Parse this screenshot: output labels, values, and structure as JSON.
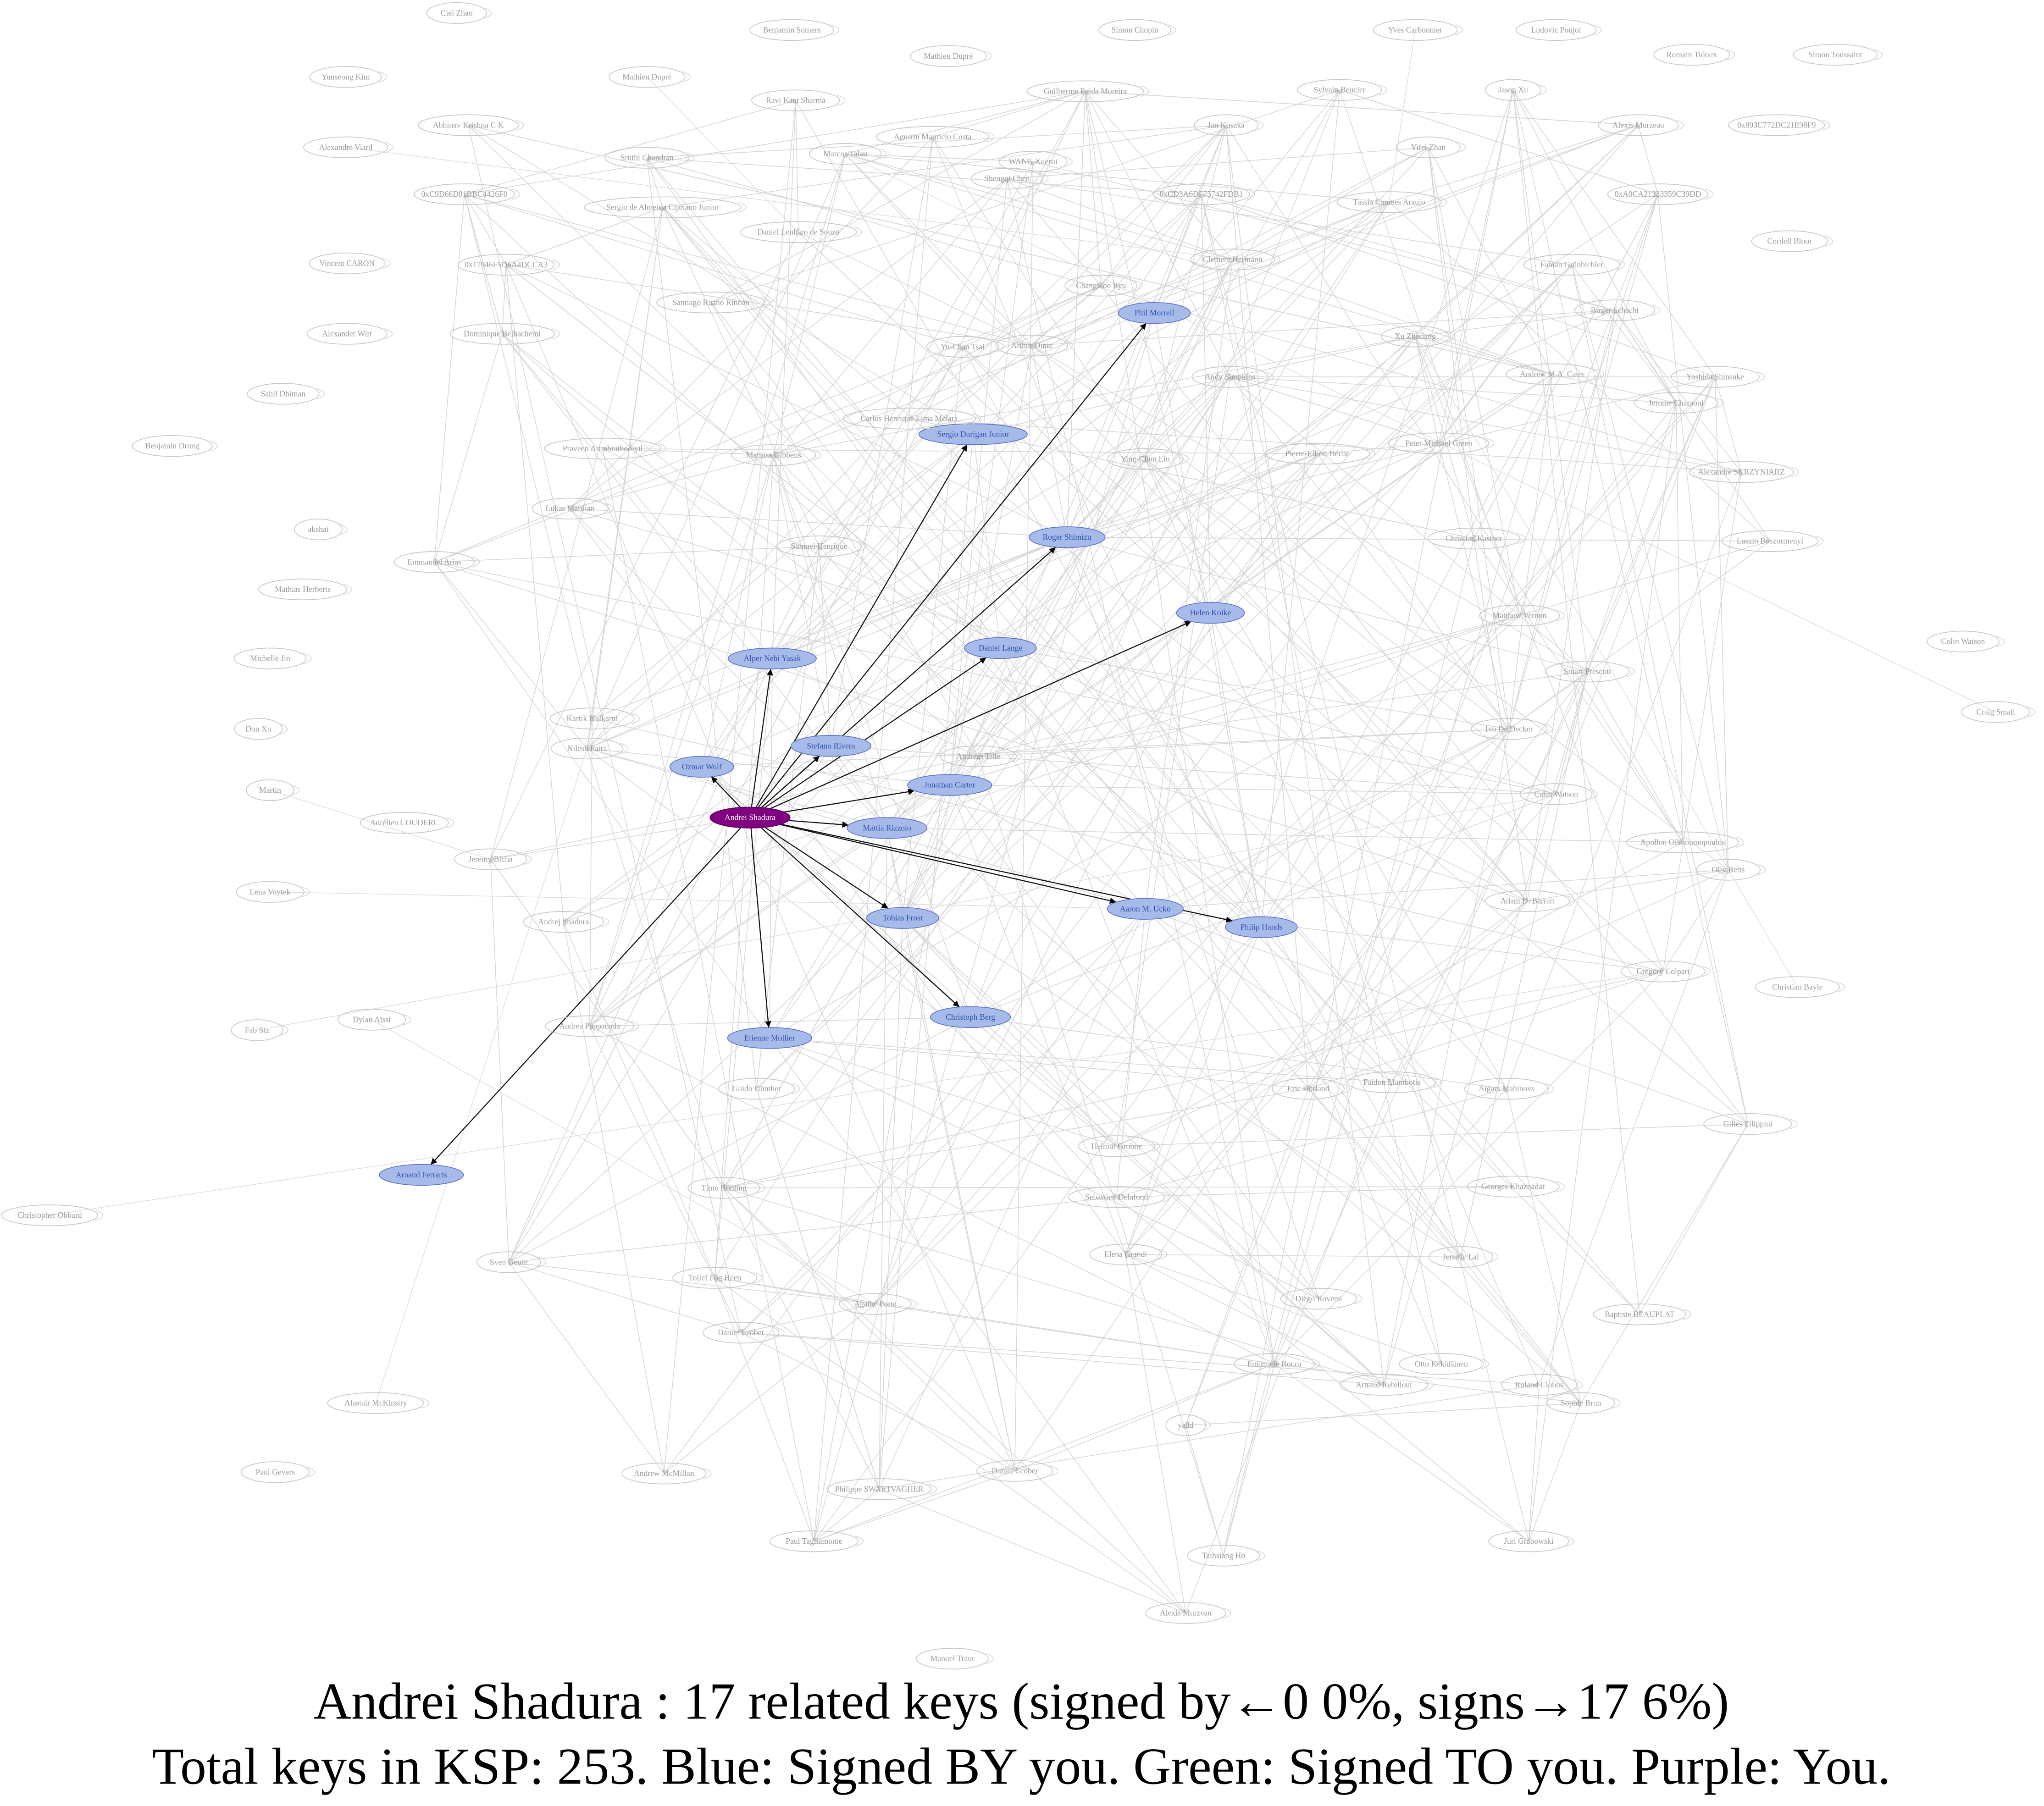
{
  "graph": {
    "caption": [
      "Andrei Shadura : 17 related keys (signed by←0  0%, signs→17  6%)",
      "Total keys in KSP: 253. Blue: Signed BY you. Green: Signed TO you. Purple: You."
    ],
    "colors": {
      "you": "#800080",
      "signed-by-you": "#a7bbea",
      "other": "#ffffff"
    },
    "nodes": [
      {
        "label": "Andrei Shadura",
        "role": "you"
      },
      {
        "label": "Phil Morrell",
        "role": "signed-by-you"
      },
      {
        "label": "Sergio Durigan Junior",
        "role": "signed-by-you"
      },
      {
        "label": "Roger Shimizu",
        "role": "signed-by-you"
      },
      {
        "label": "Helen Koike",
        "role": "signed-by-you"
      },
      {
        "label": "Daniel Lange",
        "role": "signed-by-you"
      },
      {
        "label": "Alper Nebi Yasak",
        "role": "signed-by-you"
      },
      {
        "label": "Stefano Rivera",
        "role": "signed-by-you"
      },
      {
        "label": "Ozmar Wolf",
        "role": "signed-by-you"
      },
      {
        "label": "Jonathan Carter",
        "role": "signed-by-you"
      },
      {
        "label": "Mattia Rizzolo",
        "role": "signed-by-you"
      },
      {
        "label": "Tobias Frost",
        "role": "signed-by-you"
      },
      {
        "label": "Aaron M. Ucko",
        "role": "signed-by-you"
      },
      {
        "label": "Philip Hands",
        "role": "signed-by-you"
      },
      {
        "label": "Christoph Berg",
        "role": "signed-by-you"
      },
      {
        "label": "Etienne Mollier",
        "role": "signed-by-you"
      },
      {
        "label": "Arnaud Ferraris",
        "role": "signed-by-you"
      },
      {
        "label": "Ciel Zhao",
        "role": "other"
      },
      {
        "label": "Benjamin Somers",
        "role": "other"
      },
      {
        "label": "Simon Chopin",
        "role": "other"
      },
      {
        "label": "Yves Carbonnier",
        "role": "other"
      },
      {
        "label": "Ludovic Poujol",
        "role": "other"
      },
      {
        "label": "Mathieu Dupré",
        "role": "other"
      },
      {
        "label": "Romain Tidoux",
        "role": "other"
      },
      {
        "label": "Simon Toussaint",
        "role": "other"
      },
      {
        "label": "Yunseong Kim",
        "role": "other"
      },
      {
        "label": "Mathieu Dupré",
        "role": "other"
      },
      {
        "label": "Guilherme Puida Moreira",
        "role": "other"
      },
      {
        "label": "Sylvain Beucler",
        "role": "other"
      },
      {
        "label": "Jason Xu",
        "role": "other"
      },
      {
        "label": "Ravi Kant Sharma",
        "role": "other"
      },
      {
        "label": "Abhinav Krishna C K",
        "role": "other"
      },
      {
        "label": "Jan Koszka",
        "role": "other"
      },
      {
        "label": "Alexis Murzeau",
        "role": "other"
      },
      {
        "label": "0x893C772DC21E98F9",
        "role": "other"
      },
      {
        "label": "Agustin Mauricio Costa",
        "role": "other"
      },
      {
        "label": "Alexandre Viard",
        "role": "other"
      },
      {
        "label": "Yifei Zhan",
        "role": "other"
      },
      {
        "label": "Marcos Talau",
        "role": "other"
      },
      {
        "label": "Sruthi Chandran",
        "role": "other"
      },
      {
        "label": "WANG Xuerui",
        "role": "other"
      },
      {
        "label": "Shengqi Chen",
        "role": "other"
      },
      {
        "label": "0xC9D66D81BBC4426F0",
        "role": "other"
      },
      {
        "label": "0xCD3A6DF75742FDB1",
        "role": "other"
      },
      {
        "label": "0xA0CA21233359C39DD",
        "role": "other"
      },
      {
        "label": "Sergio de Almeida Cipriano Junior",
        "role": "other"
      },
      {
        "label": "Tassia Camoes Araujo",
        "role": "other"
      },
      {
        "label": "Daniel Lenharo de Souza",
        "role": "other"
      },
      {
        "label": "Cordell Bloor",
        "role": "other"
      },
      {
        "label": "Vincent CARON",
        "role": "other"
      },
      {
        "label": "0x17946F5D6A4DCCA3",
        "role": "other"
      },
      {
        "label": "Clement Hermann",
        "role": "other"
      },
      {
        "label": "Fabian Grünbichler",
        "role": "other"
      },
      {
        "label": "Changwoo Ryu",
        "role": "other"
      },
      {
        "label": "Santiago Ruano Rincón",
        "role": "other"
      },
      {
        "label": "Birger Schacht",
        "role": "other"
      },
      {
        "label": "Alexander Wirt",
        "role": "other"
      },
      {
        "label": "Dominique Belhachemi",
        "role": "other"
      },
      {
        "label": "Xu Zhixiang",
        "role": "other"
      },
      {
        "label": "Yu-Chan Tsai",
        "role": "other"
      },
      {
        "label": "Arthur Diniz",
        "role": "other"
      },
      {
        "label": "Andy Simpkins",
        "role": "other"
      },
      {
        "label": "Andrew M.A. Cater",
        "role": "other"
      },
      {
        "label": "Yoshida Shinsuke",
        "role": "other"
      },
      {
        "label": "Sahil Dhiman",
        "role": "other"
      },
      {
        "label": "Jerome Charaoui",
        "role": "other"
      },
      {
        "label": "Benjamin Drung",
        "role": "other"
      },
      {
        "label": "Praveen Arimbrathodiyil",
        "role": "other"
      },
      {
        "label": "Carlos Henrique Lima Melara",
        "role": "other"
      },
      {
        "label": "Pierre-Elliott Bécue",
        "role": "other"
      },
      {
        "label": "Peter Michael Green",
        "role": "other"
      },
      {
        "label": "Mathias Gibbens",
        "role": "other"
      },
      {
        "label": "Ying-Chun Liu",
        "role": "other"
      },
      {
        "label": "Alexandre SKRZYNIARZ",
        "role": "other"
      },
      {
        "label": "Lukas Märdian",
        "role": "other"
      },
      {
        "label": "Nilesh Patra",
        "role": "other"
      },
      {
        "label": "akshat",
        "role": "other"
      },
      {
        "label": "Christian Kastner",
        "role": "other"
      },
      {
        "label": "Laszlo Boszormenyi",
        "role": "other"
      },
      {
        "label": "Emmanuel Arias",
        "role": "other"
      },
      {
        "label": "Samuel Henrique",
        "role": "other"
      },
      {
        "label": "Mathias Herberts",
        "role": "other"
      },
      {
        "label": "Matthew Vernon",
        "role": "other"
      },
      {
        "label": "Colin Watson",
        "role": "other"
      },
      {
        "label": "Michelle Jin",
        "role": "other"
      },
      {
        "label": "Dylan Aïssi",
        "role": "other"
      },
      {
        "label": "Stuart Prescott",
        "role": "other"
      },
      {
        "label": "Don Xu",
        "role": "other"
      },
      {
        "label": "Craig Small",
        "role": "other"
      },
      {
        "label": "Martin",
        "role": "other"
      },
      {
        "label": "Ivo De Decker",
        "role": "other"
      },
      {
        "label": "Kartik Kulkarni",
        "role": "other"
      },
      {
        "label": "Colin Watson",
        "role": "other"
      },
      {
        "label": "Aurélien COUDERC",
        "role": "other"
      },
      {
        "label": "Apollon Oikonomopoulos",
        "role": "other"
      },
      {
        "label": "Jeremy Bícha",
        "role": "other"
      },
      {
        "label": "Olly Betts",
        "role": "other"
      },
      {
        "label": "Lena Voytek",
        "role": "other"
      },
      {
        "label": "Andrej Shadura",
        "role": "other"
      },
      {
        "label": "Adam D. Barratt",
        "role": "other"
      },
      {
        "label": "Gregory Colpart",
        "role": "other"
      },
      {
        "label": "Christian Bayle",
        "role": "other"
      },
      {
        "label": "Fab Stz",
        "role": "other"
      },
      {
        "label": "Andrea Pappacoda",
        "role": "other"
      },
      {
        "label": "Christopher Obbard",
        "role": "other"
      },
      {
        "label": "Guido Günther",
        "role": "other"
      },
      {
        "label": "Gilles Filippini",
        "role": "other"
      },
      {
        "label": "Timo Röhling",
        "role": "other"
      },
      {
        "label": "Sven Geuer",
        "role": "other"
      },
      {
        "label": "Tollef Fog Heen",
        "role": "other"
      },
      {
        "label": "Elena Grandi",
        "role": "other"
      },
      {
        "label": "Jeremy Lal",
        "role": "other"
      },
      {
        "label": "Daniel Gröber",
        "role": "other"
      },
      {
        "label": "Agathe Porte",
        "role": "other"
      },
      {
        "label": "Baptiste BEAUPLAT",
        "role": "other"
      },
      {
        "label": "Diego Roversi",
        "role": "other"
      },
      {
        "label": "Emanuele Rocca",
        "role": "other"
      },
      {
        "label": "Otto Kekäläinen",
        "role": "other"
      },
      {
        "label": "Alastair McKinstry",
        "role": "other"
      },
      {
        "label": "Andrew McMillan",
        "role": "other"
      },
      {
        "label": "Daniel Gröber",
        "role": "other"
      },
      {
        "label": "Philippe SWARTVAGHER",
        "role": "other"
      },
      {
        "label": "Paul Gevers",
        "role": "other"
      },
      {
        "label": "Paul Tagliamonte",
        "role": "other"
      },
      {
        "label": "Taihsiang Ho",
        "role": "other"
      },
      {
        "label": "Manuel Traut",
        "role": "other"
      },
      {
        "label": "Alexis Murzeau",
        "role": "other"
      },
      {
        "label": "Arnaud Rebillout",
        "role": "other"
      },
      {
        "label": "Roland Clobus",
        "role": "other"
      },
      {
        "label": "Sophie Brun",
        "role": "other"
      },
      {
        "label": "yadd",
        "role": "other"
      },
      {
        "label": "Juri Grabowski",
        "role": "other"
      },
      {
        "label": "Faidon Liambotis",
        "role": "other"
      },
      {
        "label": "Eric Dorland",
        "role": "other"
      },
      {
        "label": "Helmut Grohne",
        "role": "other"
      },
      {
        "label": "Sebastien Delafond",
        "role": "other"
      },
      {
        "label": "Georges Khaznadar",
        "role": "other"
      },
      {
        "label": "Aigars Mahinovs",
        "role": "other"
      },
      {
        "label": "Andreas Tille",
        "role": "other"
      }
    ]
  }
}
